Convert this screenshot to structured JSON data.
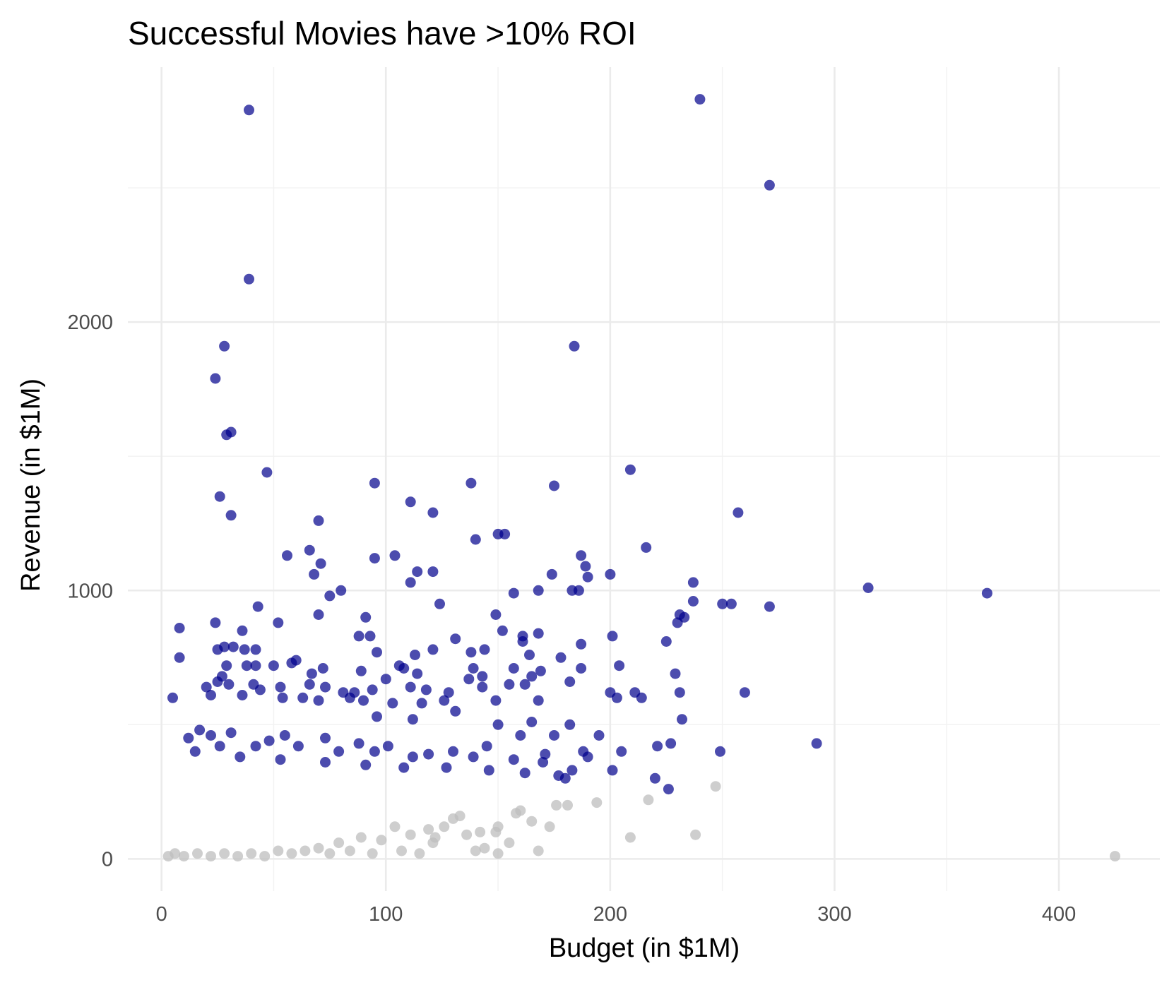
{
  "chart_data": {
    "type": "scatter",
    "title": "Successful Movies have >10% ROI",
    "xlabel": "Budget (in $1M)",
    "ylabel": "Revenue (in $1M)",
    "xlim": [
      -15,
      445
    ],
    "ylim": [
      -120,
      2950
    ],
    "x_ticks": [
      0,
      100,
      200,
      300,
      400
    ],
    "y_ticks": [
      0,
      1000,
      2000
    ],
    "grid": true,
    "legend": "none",
    "colors": {
      "success": "#00008b",
      "not_success": "#bebebe"
    },
    "series": [
      {
        "group": "success",
        "color": "#00008b",
        "points": [
          [
            39,
            2790
          ],
          [
            240,
            2830
          ],
          [
            271,
            2510
          ],
          [
            39,
            2160
          ],
          [
            28,
            1910
          ],
          [
            184,
            1910
          ],
          [
            24,
            1790
          ],
          [
            31,
            1590
          ],
          [
            29,
            1580
          ],
          [
            209,
            1450
          ],
          [
            47,
            1440
          ],
          [
            95,
            1400
          ],
          [
            138,
            1400
          ],
          [
            175,
            1390
          ],
          [
            26,
            1350
          ],
          [
            111,
            1330
          ],
          [
            257,
            1290
          ],
          [
            121,
            1290
          ],
          [
            31,
            1280
          ],
          [
            70,
            1260
          ],
          [
            150,
            1210
          ],
          [
            153,
            1210
          ],
          [
            140,
            1190
          ],
          [
            216,
            1160
          ],
          [
            66,
            1150
          ],
          [
            56,
            1130
          ],
          [
            104,
            1130
          ],
          [
            187,
            1130
          ],
          [
            95,
            1120
          ],
          [
            71,
            1100
          ],
          [
            189,
            1090
          ],
          [
            114,
            1070
          ],
          [
            121,
            1070
          ],
          [
            68,
            1060
          ],
          [
            174,
            1060
          ],
          [
            200,
            1060
          ],
          [
            190,
            1050
          ],
          [
            111,
            1030
          ],
          [
            237,
            1030
          ],
          [
            315,
            1010
          ],
          [
            183,
            1000
          ],
          [
            186,
            1000
          ],
          [
            168,
            1000
          ],
          [
            80,
            1000
          ],
          [
            368,
            990
          ],
          [
            157,
            990
          ],
          [
            75,
            980
          ],
          [
            237,
            960
          ],
          [
            250,
            950
          ],
          [
            254,
            950
          ],
          [
            124,
            950
          ],
          [
            43,
            940
          ],
          [
            271,
            940
          ],
          [
            70,
            910
          ],
          [
            231,
            910
          ],
          [
            149,
            910
          ],
          [
            91,
            900
          ],
          [
            233,
            900
          ],
          [
            52,
            880
          ],
          [
            24,
            880
          ],
          [
            8,
            860
          ],
          [
            36,
            850
          ],
          [
            152,
            850
          ],
          [
            230,
            880
          ],
          [
            168,
            840
          ],
          [
            201,
            830
          ],
          [
            161,
            830
          ],
          [
            88,
            830
          ],
          [
            93,
            830
          ],
          [
            131,
            820
          ],
          [
            225,
            810
          ],
          [
            161,
            810
          ],
          [
            187,
            800
          ],
          [
            28,
            790
          ],
          [
            32,
            790
          ],
          [
            37,
            780
          ],
          [
            25,
            780
          ],
          [
            42,
            780
          ],
          [
            144,
            780
          ],
          [
            121,
            780
          ],
          [
            138,
            770
          ],
          [
            164,
            760
          ],
          [
            96,
            770
          ],
          [
            113,
            760
          ],
          [
            8,
            750
          ],
          [
            178,
            750
          ],
          [
            60,
            740
          ],
          [
            58,
            730
          ],
          [
            38,
            720
          ],
          [
            42,
            720
          ],
          [
            29,
            720
          ],
          [
            50,
            720
          ],
          [
            72,
            710
          ],
          [
            106,
            720
          ],
          [
            108,
            710
          ],
          [
            139,
            710
          ],
          [
            157,
            710
          ],
          [
            187,
            710
          ],
          [
            204,
            720
          ],
          [
            229,
            690
          ],
          [
            169,
            700
          ],
          [
            27,
            680
          ],
          [
            89,
            700
          ],
          [
            114,
            690
          ],
          [
            67,
            690
          ],
          [
            143,
            680
          ],
          [
            165,
            680
          ],
          [
            100,
            670
          ],
          [
            137,
            670
          ],
          [
            25,
            660
          ],
          [
            30,
            650
          ],
          [
            41,
            650
          ],
          [
            66,
            650
          ],
          [
            53,
            640
          ],
          [
            73,
            640
          ],
          [
            81,
            620
          ],
          [
            86,
            620
          ],
          [
            94,
            630
          ],
          [
            111,
            640
          ],
          [
            118,
            630
          ],
          [
            128,
            620
          ],
          [
            143,
            640
          ],
          [
            155,
            650
          ],
          [
            162,
            650
          ],
          [
            182,
            660
          ],
          [
            20,
            640
          ],
          [
            44,
            630
          ],
          [
            5,
            600
          ],
          [
            22,
            610
          ],
          [
            36,
            610
          ],
          [
            54,
            600
          ],
          [
            63,
            600
          ],
          [
            70,
            590
          ],
          [
            84,
            600
          ],
          [
            90,
            590
          ],
          [
            103,
            580
          ],
          [
            116,
            580
          ],
          [
            126,
            590
          ],
          [
            149,
            590
          ],
          [
            168,
            590
          ],
          [
            200,
            620
          ],
          [
            203,
            600
          ],
          [
            211,
            620
          ],
          [
            214,
            600
          ],
          [
            231,
            620
          ],
          [
            260,
            620
          ],
          [
            232,
            520
          ],
          [
            249,
            400
          ],
          [
            227,
            430
          ],
          [
            221,
            420
          ],
          [
            226,
            260
          ],
          [
            220,
            300
          ],
          [
            205,
            400
          ],
          [
            201,
            330
          ],
          [
            292,
            430
          ],
          [
            188,
            400
          ],
          [
            190,
            380
          ],
          [
            183,
            330
          ],
          [
            177,
            310
          ],
          [
            170,
            360
          ],
          [
            17,
            480
          ],
          [
            22,
            460
          ],
          [
            31,
            470
          ],
          [
            48,
            440
          ],
          [
            55,
            460
          ],
          [
            73,
            450
          ],
          [
            88,
            430
          ],
          [
            95,
            400
          ],
          [
            112,
            380
          ],
          [
            130,
            400
          ],
          [
            145,
            420
          ],
          [
            160,
            460
          ],
          [
            175,
            460
          ],
          [
            195,
            460
          ],
          [
            96,
            530
          ],
          [
            112,
            520
          ],
          [
            131,
            550
          ],
          [
            150,
            500
          ],
          [
            165,
            510
          ],
          [
            182,
            500
          ],
          [
            12,
            450
          ],
          [
            26,
            420
          ],
          [
            42,
            420
          ],
          [
            61,
            420
          ],
          [
            79,
            400
          ],
          [
            101,
            420
          ],
          [
            119,
            390
          ],
          [
            139,
            380
          ],
          [
            157,
            370
          ],
          [
            171,
            390
          ],
          [
            15,
            400
          ],
          [
            35,
            380
          ],
          [
            53,
            370
          ],
          [
            73,
            360
          ],
          [
            91,
            350
          ],
          [
            108,
            340
          ],
          [
            127,
            340
          ],
          [
            146,
            330
          ],
          [
            162,
            320
          ],
          [
            180,
            300
          ]
        ]
      },
      {
        "group": "not_success",
        "color": "#bebebe",
        "points": [
          [
            425,
            10
          ],
          [
            247,
            270
          ],
          [
            238,
            90
          ],
          [
            209,
            80
          ],
          [
            217,
            220
          ],
          [
            194,
            210
          ],
          [
            181,
            200
          ],
          [
            176,
            200
          ],
          [
            173,
            120
          ],
          [
            168,
            30
          ],
          [
            165,
            140
          ],
          [
            160,
            180
          ],
          [
            155,
            60
          ],
          [
            150,
            20
          ],
          [
            149,
            100
          ],
          [
            144,
            40
          ],
          [
            140,
            30
          ],
          [
            136,
            90
          ],
          [
            130,
            150
          ],
          [
            126,
            120
          ],
          [
            121,
            60
          ],
          [
            119,
            110
          ],
          [
            115,
            20
          ],
          [
            111,
            90
          ],
          [
            107,
            30
          ],
          [
            104,
            120
          ],
          [
            98,
            70
          ],
          [
            94,
            20
          ],
          [
            89,
            80
          ],
          [
            84,
            30
          ],
          [
            79,
            60
          ],
          [
            75,
            20
          ],
          [
            70,
            40
          ],
          [
            64,
            30
          ],
          [
            58,
            20
          ],
          [
            52,
            30
          ],
          [
            46,
            10
          ],
          [
            40,
            20
          ],
          [
            34,
            10
          ],
          [
            28,
            20
          ],
          [
            22,
            10
          ],
          [
            16,
            20
          ],
          [
            10,
            10
          ],
          [
            6,
            20
          ],
          [
            3,
            10
          ],
          [
            122,
            80
          ],
          [
            133,
            160
          ],
          [
            142,
            100
          ],
          [
            150,
            120
          ],
          [
            158,
            170
          ]
        ]
      }
    ]
  }
}
